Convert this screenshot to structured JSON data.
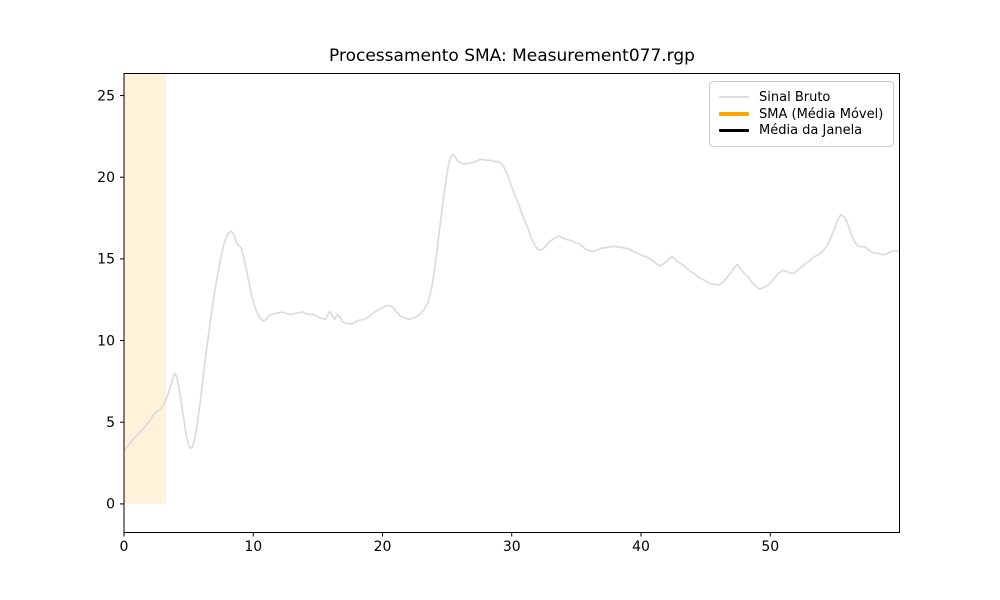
{
  "title": "Processamento SMA: Measurement077.rgp",
  "legend": {
    "items": [
      {
        "label": "Sinal Bruto",
        "color": "#dcdcdc",
        "thickness": 2
      },
      {
        "label": "SMA (Média Móvel)",
        "color": "#ffa500",
        "thickness": 4
      },
      {
        "label": "Média da Janela",
        "color": "#000000",
        "thickness": 3
      }
    ]
  },
  "chart_data": {
    "type": "line",
    "title": "Processamento SMA: Measurement077.rgp",
    "xlabel": "",
    "ylabel": "",
    "grid": false,
    "legend_position": "upper right",
    "xlim": [
      0,
      60
    ],
    "ylim": [
      -1.75,
      26.35
    ],
    "x_ticks": [
      0,
      10,
      20,
      30,
      40,
      50
    ],
    "y_ticks": [
      0,
      5,
      10,
      15,
      20,
      25
    ],
    "highlight_band": {
      "x0": 0,
      "x1": 3.25,
      "y0": 0,
      "y1": 26.35,
      "color": "rgba(255,165,0,0.14)"
    },
    "series": [
      {
        "name": "Sinal Bruto",
        "color": "#dcdcdc",
        "width": 1.7,
        "points": [
          [
            0,
            3.3
          ],
          [
            0.25,
            3.5
          ],
          [
            0.5,
            3.75
          ],
          [
            0.75,
            4.0
          ],
          [
            1.0,
            4.2
          ],
          [
            1.25,
            4.4
          ],
          [
            1.5,
            4.6
          ],
          [
            1.75,
            4.85
          ],
          [
            2.0,
            5.1
          ],
          [
            2.2,
            5.35
          ],
          [
            2.4,
            5.55
          ],
          [
            2.6,
            5.7
          ],
          [
            2.8,
            5.8
          ],
          [
            3.0,
            6.0
          ],
          [
            3.2,
            6.3
          ],
          [
            3.4,
            6.7
          ],
          [
            3.6,
            7.2
          ],
          [
            3.75,
            7.6
          ],
          [
            3.9,
            8.0
          ],
          [
            4.05,
            7.85
          ],
          [
            4.2,
            7.3
          ],
          [
            4.4,
            6.4
          ],
          [
            4.6,
            5.3
          ],
          [
            4.8,
            4.3
          ],
          [
            5.0,
            3.6
          ],
          [
            5.15,
            3.4
          ],
          [
            5.3,
            3.5
          ],
          [
            5.5,
            4.1
          ],
          [
            5.7,
            5.1
          ],
          [
            5.9,
            6.3
          ],
          [
            6.1,
            7.6
          ],
          [
            6.3,
            8.9
          ],
          [
            6.5,
            10.1
          ],
          [
            6.7,
            11.3
          ],
          [
            6.9,
            12.4
          ],
          [
            7.1,
            13.4
          ],
          [
            7.3,
            14.3
          ],
          [
            7.5,
            15.1
          ],
          [
            7.7,
            15.8
          ],
          [
            7.9,
            16.3
          ],
          [
            8.1,
            16.6
          ],
          [
            8.3,
            16.7
          ],
          [
            8.5,
            16.5
          ],
          [
            8.7,
            16.0
          ],
          [
            8.9,
            15.8
          ],
          [
            9.05,
            15.7
          ],
          [
            9.2,
            15.3
          ],
          [
            9.4,
            14.6
          ],
          [
            9.6,
            13.8
          ],
          [
            9.8,
            13.0
          ],
          [
            10.0,
            12.4
          ],
          [
            10.2,
            11.9
          ],
          [
            10.4,
            11.5
          ],
          [
            10.6,
            11.3
          ],
          [
            10.8,
            11.2
          ],
          [
            11.0,
            11.3
          ],
          [
            11.2,
            11.5
          ],
          [
            11.45,
            11.6
          ],
          [
            11.7,
            11.65
          ],
          [
            12.0,
            11.7
          ],
          [
            12.3,
            11.75
          ],
          [
            12.6,
            11.65
          ],
          [
            12.9,
            11.6
          ],
          [
            13.2,
            11.65
          ],
          [
            13.5,
            11.7
          ],
          [
            13.8,
            11.75
          ],
          [
            14.1,
            11.65
          ],
          [
            14.4,
            11.6
          ],
          [
            14.7,
            11.6
          ],
          [
            15.0,
            11.45
          ],
          [
            15.3,
            11.35
          ],
          [
            15.6,
            11.3
          ],
          [
            15.9,
            11.8
          ],
          [
            16.1,
            11.55
          ],
          [
            16.3,
            11.3
          ],
          [
            16.5,
            11.6
          ],
          [
            16.7,
            11.45
          ],
          [
            16.9,
            11.15
          ],
          [
            17.2,
            11.05
          ],
          [
            17.6,
            11.0
          ],
          [
            17.9,
            11.15
          ],
          [
            18.2,
            11.25
          ],
          [
            18.6,
            11.3
          ],
          [
            19.0,
            11.5
          ],
          [
            19.4,
            11.75
          ],
          [
            19.8,
            11.95
          ],
          [
            20.2,
            12.1
          ],
          [
            20.5,
            12.15
          ],
          [
            20.8,
            12.05
          ],
          [
            21.1,
            11.75
          ],
          [
            21.4,
            11.5
          ],
          [
            21.7,
            11.4
          ],
          [
            22.0,
            11.3
          ],
          [
            22.3,
            11.35
          ],
          [
            22.6,
            11.45
          ],
          [
            22.9,
            11.6
          ],
          [
            23.2,
            11.9
          ],
          [
            23.5,
            12.3
          ],
          [
            23.8,
            13.2
          ],
          [
            24.0,
            14.2
          ],
          [
            24.2,
            15.4
          ],
          [
            24.4,
            16.7
          ],
          [
            24.6,
            18.0
          ],
          [
            24.8,
            19.2
          ],
          [
            25.0,
            20.3
          ],
          [
            25.2,
            21.1
          ],
          [
            25.4,
            21.4
          ],
          [
            25.6,
            21.3
          ],
          [
            25.8,
            21.0
          ],
          [
            26.1,
            20.85
          ],
          [
            26.4,
            20.8
          ],
          [
            26.7,
            20.85
          ],
          [
            27.0,
            20.9
          ],
          [
            27.3,
            21.0
          ],
          [
            27.6,
            21.1
          ],
          [
            27.9,
            21.05
          ],
          [
            28.2,
            21.05
          ],
          [
            28.5,
            21.0
          ],
          [
            28.8,
            20.95
          ],
          [
            29.1,
            20.9
          ],
          [
            29.4,
            20.6
          ],
          [
            29.7,
            20.1
          ],
          [
            30.0,
            19.4
          ],
          [
            30.3,
            18.8
          ],
          [
            30.6,
            18.2
          ],
          [
            30.9,
            17.5
          ],
          [
            31.2,
            17.0
          ],
          [
            31.5,
            16.3
          ],
          [
            31.8,
            15.8
          ],
          [
            32.1,
            15.55
          ],
          [
            32.4,
            15.6
          ],
          [
            32.7,
            15.85
          ],
          [
            33.0,
            16.1
          ],
          [
            33.3,
            16.25
          ],
          [
            33.6,
            16.4
          ],
          [
            33.9,
            16.3
          ],
          [
            34.2,
            16.2
          ],
          [
            34.5,
            16.15
          ],
          [
            34.9,
            16.0
          ],
          [
            35.3,
            15.9
          ],
          [
            35.7,
            15.6
          ],
          [
            36.0,
            15.5
          ],
          [
            36.3,
            15.45
          ],
          [
            36.6,
            15.55
          ],
          [
            36.9,
            15.65
          ],
          [
            37.3,
            15.7
          ],
          [
            37.7,
            15.75
          ],
          [
            38.1,
            15.75
          ],
          [
            38.5,
            15.7
          ],
          [
            38.9,
            15.65
          ],
          [
            39.3,
            15.5
          ],
          [
            39.7,
            15.35
          ],
          [
            40.1,
            15.2
          ],
          [
            40.5,
            15.1
          ],
          [
            40.9,
            14.9
          ],
          [
            41.2,
            14.7
          ],
          [
            41.5,
            14.55
          ],
          [
            41.8,
            14.75
          ],
          [
            42.1,
            14.95
          ],
          [
            42.4,
            15.15
          ],
          [
            42.7,
            14.9
          ],
          [
            43.0,
            14.75
          ],
          [
            43.3,
            14.6
          ],
          [
            43.7,
            14.3
          ],
          [
            44.1,
            14.1
          ],
          [
            44.5,
            13.85
          ],
          [
            44.9,
            13.7
          ],
          [
            45.3,
            13.5
          ],
          [
            45.7,
            13.45
          ],
          [
            46.0,
            13.4
          ],
          [
            46.3,
            13.55
          ],
          [
            46.6,
            13.8
          ],
          [
            46.9,
            14.1
          ],
          [
            47.2,
            14.45
          ],
          [
            47.45,
            14.65
          ],
          [
            47.7,
            14.4
          ],
          [
            48.0,
            14.1
          ],
          [
            48.3,
            13.9
          ],
          [
            48.6,
            13.55
          ],
          [
            48.9,
            13.3
          ],
          [
            49.2,
            13.15
          ],
          [
            49.5,
            13.25
          ],
          [
            49.8,
            13.4
          ],
          [
            50.1,
            13.6
          ],
          [
            50.4,
            13.9
          ],
          [
            50.7,
            14.15
          ],
          [
            50.95,
            14.3
          ],
          [
            51.2,
            14.25
          ],
          [
            51.5,
            14.15
          ],
          [
            51.8,
            14.1
          ],
          [
            52.1,
            14.3
          ],
          [
            52.4,
            14.5
          ],
          [
            52.7,
            14.7
          ],
          [
            53.0,
            14.85
          ],
          [
            53.3,
            15.1
          ],
          [
            53.6,
            15.2
          ],
          [
            53.9,
            15.35
          ],
          [
            54.2,
            15.6
          ],
          [
            54.5,
            15.95
          ],
          [
            54.8,
            16.5
          ],
          [
            55.0,
            16.9
          ],
          [
            55.2,
            17.35
          ],
          [
            55.45,
            17.7
          ],
          [
            55.7,
            17.6
          ],
          [
            55.9,
            17.35
          ],
          [
            56.1,
            16.9
          ],
          [
            56.3,
            16.45
          ],
          [
            56.5,
            16.1
          ],
          [
            56.7,
            15.85
          ],
          [
            57.0,
            15.75
          ],
          [
            57.3,
            15.75
          ],
          [
            57.6,
            15.55
          ],
          [
            57.9,
            15.4
          ],
          [
            58.2,
            15.35
          ],
          [
            58.5,
            15.3
          ],
          [
            58.8,
            15.25
          ],
          [
            59.1,
            15.35
          ],
          [
            59.4,
            15.45
          ],
          [
            59.7,
            15.5
          ],
          [
            59.9,
            15.45
          ]
        ]
      },
      {
        "name": "SMA (Média Móvel)",
        "color": "#ffa500",
        "width": 4,
        "points": []
      },
      {
        "name": "Média da Janela",
        "color": "#000000",
        "width": 2.5,
        "points": []
      }
    ]
  }
}
